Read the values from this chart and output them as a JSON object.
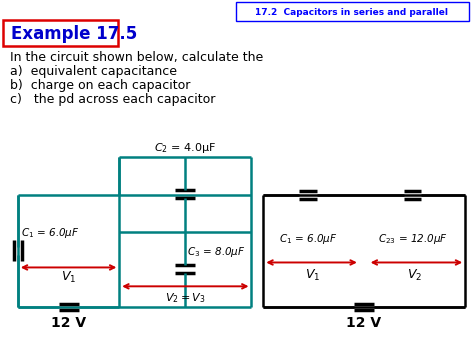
{
  "title_box": "17.2  Capacitors in series and parallel",
  "example_label": "Example 17.5",
  "body_text": [
    "In the circuit shown below, calculate the",
    "a)  equivalent capacitance",
    "b)  charge on each capacitor",
    "c)   the pd across each capacitor"
  ],
  "bg_color": "#ffffff",
  "title_color": "#0000ff",
  "example_color": "#0000cc",
  "teal": "#008080",
  "black": "#000000",
  "arrow_color": "#cc0000",
  "red_box": "#dd0000",
  "figsize": [
    4.74,
    3.55
  ],
  "dpi": 100
}
